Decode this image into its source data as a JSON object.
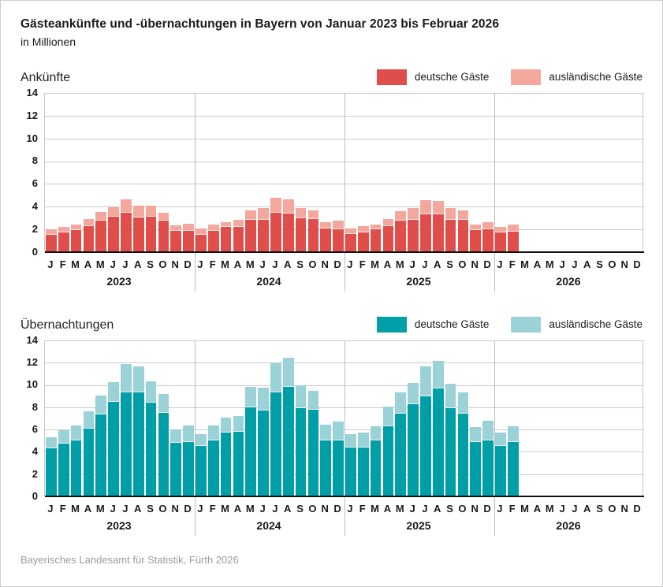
{
  "page": {
    "title": "Gästeankünfte und -übernachtungen in Bayern von Januar 2023 bis Februar 2026",
    "subtitle": "in Millionen",
    "source": "Bayerisches Landesamt für Statistik, Fürth 2026"
  },
  "colors": {
    "arrivals_domestic": "#e04e4c",
    "arrivals_foreign": "#f4a79c",
    "nights_domestic": "#009ea6",
    "nights_foreign": "#9ad2d8",
    "gridline": "#cccccc",
    "year_separator": "#bdbdbd",
    "axis_line": "#111111",
    "source_text": "#9b9b9b"
  },
  "chart_data": [
    {
      "type": "bar",
      "stacked": true,
      "title": "Ankünfte",
      "unit": "Millionen",
      "ylim": [
        0,
        14
      ],
      "ytick_step": 2,
      "grid": true,
      "legend_position": "top-right",
      "years": [
        "2023",
        "2024",
        "2025",
        "2026"
      ],
      "month_letters": [
        "J",
        "F",
        "M",
        "A",
        "M",
        "J",
        "J",
        "A",
        "S",
        "O",
        "N",
        "D"
      ],
      "months_with_data": 38,
      "legend": [
        {
          "label": "deutsche Gäste",
          "color": "#e04e4c"
        },
        {
          "label": "ausländische Gäste",
          "color": "#f4a79c"
        }
      ],
      "series": [
        {
          "name": "deutsche Gäste",
          "values": [
            1.5,
            1.7,
            1.95,
            2.25,
            2.75,
            3.1,
            3.45,
            3.05,
            3.1,
            2.75,
            1.85,
            1.85,
            1.55,
            1.85,
            2.2,
            2.2,
            2.85,
            2.85,
            3.45,
            3.4,
            3.0,
            2.9,
            2.1,
            2.0,
            1.6,
            1.7,
            2.0,
            2.3,
            2.75,
            2.85,
            3.3,
            3.3,
            2.85,
            2.85,
            1.95,
            2.0,
            1.75,
            1.8
          ]
        },
        {
          "name": "ausländische Gäste",
          "values": [
            0.5,
            0.5,
            0.5,
            0.65,
            0.75,
            0.85,
            1.2,
            1.05,
            1.0,
            0.7,
            0.5,
            0.65,
            0.5,
            0.55,
            0.45,
            0.65,
            0.85,
            1.05,
            1.3,
            1.25,
            0.9,
            0.8,
            0.5,
            0.75,
            0.5,
            0.6,
            0.45,
            0.6,
            0.85,
            1.05,
            1.3,
            1.2,
            1.05,
            0.85,
            0.5,
            0.65,
            0.45,
            0.6
          ]
        }
      ]
    },
    {
      "type": "bar",
      "stacked": true,
      "title": "Übernachtungen",
      "unit": "Millionen",
      "ylim": [
        0,
        14
      ],
      "ytick_step": 2,
      "grid": true,
      "legend_position": "top-right",
      "years": [
        "2023",
        "2024",
        "2025",
        "2026"
      ],
      "month_letters": [
        "J",
        "F",
        "M",
        "A",
        "M",
        "J",
        "J",
        "A",
        "S",
        "O",
        "N",
        "D"
      ],
      "months_with_data": 38,
      "legend": [
        {
          "label": "deutsche Gäste",
          "color": "#009ea6"
        },
        {
          "label": "ausländische Gäste",
          "color": "#9ad2d8"
        }
      ],
      "series": [
        {
          "name": "deutsche Gäste",
          "values": [
            4.3,
            4.7,
            5.05,
            6.1,
            7.35,
            8.45,
            9.3,
            9.35,
            8.4,
            7.5,
            4.8,
            4.85,
            4.5,
            5.05,
            5.75,
            5.8,
            8.0,
            7.7,
            9.35,
            9.85,
            7.95,
            7.75,
            5.05,
            5.05,
            4.4,
            4.4,
            5.0,
            6.3,
            7.45,
            8.25,
            9.0,
            9.65,
            7.9,
            7.4,
            4.9,
            5.0,
            4.5,
            4.9
          ]
        },
        {
          "name": "ausländische Gäste",
          "values": [
            1.0,
            1.25,
            1.3,
            1.55,
            1.7,
            1.8,
            2.55,
            2.3,
            1.95,
            1.7,
            1.2,
            1.5,
            1.05,
            1.3,
            1.3,
            1.4,
            1.8,
            2.05,
            2.6,
            2.6,
            2.0,
            1.75,
            1.35,
            1.65,
            1.2,
            1.3,
            1.3,
            1.75,
            1.85,
            1.95,
            2.65,
            2.5,
            2.2,
            1.95,
            1.35,
            1.75,
            1.2,
            1.4
          ]
        }
      ]
    }
  ]
}
